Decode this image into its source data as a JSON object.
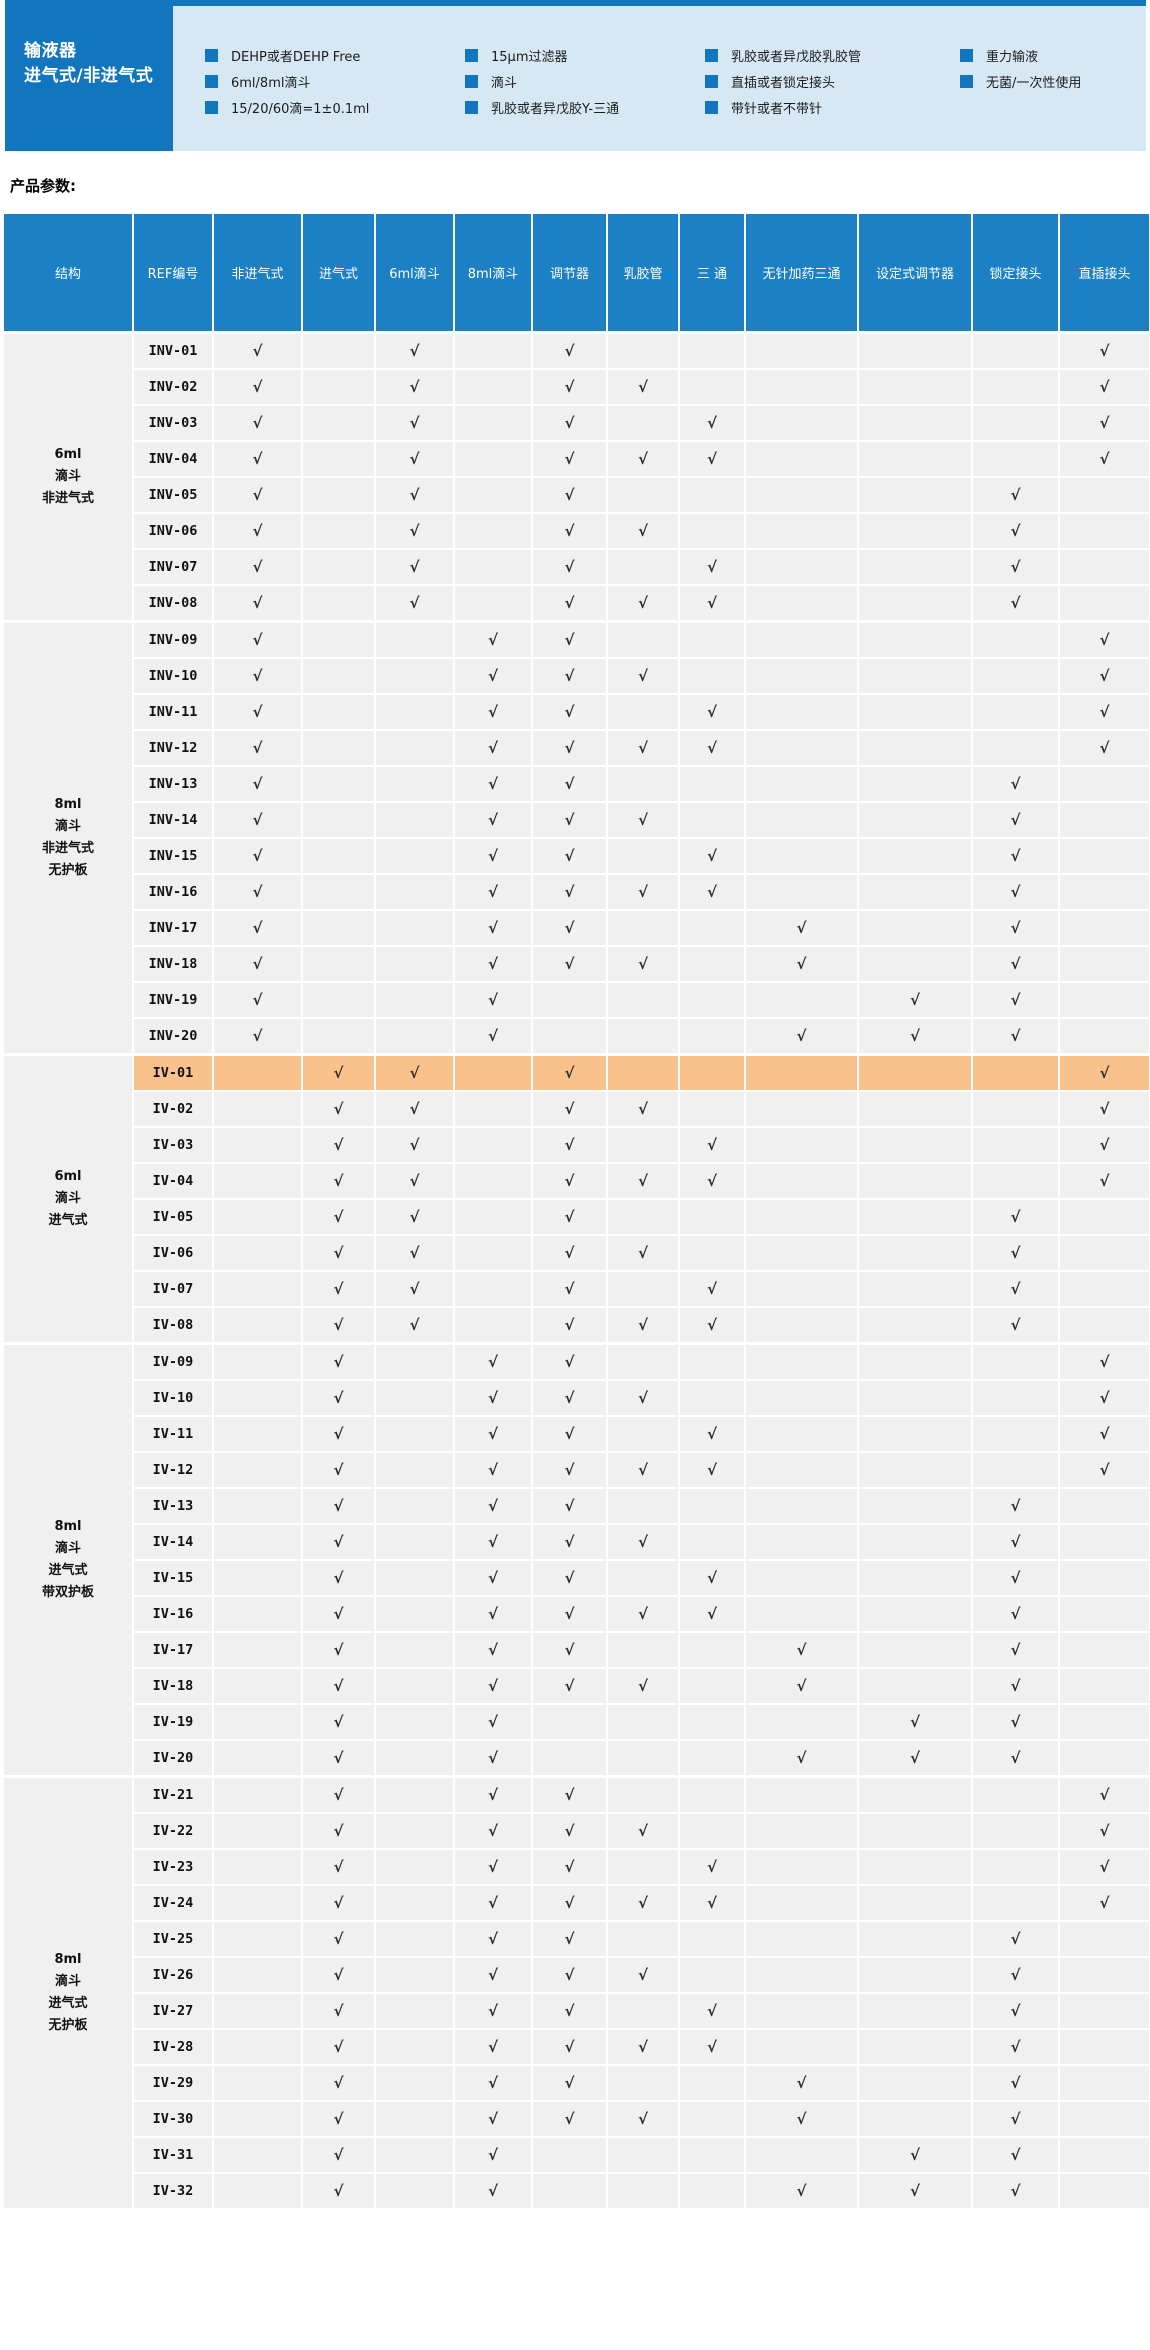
{
  "colors": {
    "accent_blue": "#1176BE",
    "table_header_blue": "#1B80C4",
    "panel_light_blue": "#D7E8F5",
    "cell_gray": "#F0F0F0",
    "highlight_orange": "#F9C28C"
  },
  "hero": {
    "title_line1": "输液器",
    "title_line2": "进气式/非进气式",
    "feature_columns": [
      [
        "DEHP或者DEHP Free",
        "6ml/8ml滴斗",
        "15/20/60滴=1±0.1ml"
      ],
      [
        "15μm过滤器",
        "滴斗",
        "乳胶或者异戊胶Y-三通"
      ],
      [
        "乳胶或者异戊胶乳胶管",
        "直插或者锁定接头",
        "带针或者不带针"
      ],
      [
        "重力输液",
        "无菌/一次性使用"
      ]
    ]
  },
  "section_label": "产品参数:",
  "table": {
    "check_glyph": "√",
    "headers": [
      "结构",
      "REF编号",
      "非进气式",
      "进气式",
      "6ml滴斗",
      "8ml滴斗",
      "调节器",
      "乳胶管",
      "三 通",
      "无针加药三通",
      "设定式调节器",
      "锁定接头",
      "直插接头"
    ],
    "groups": [
      {
        "label": "6ml\n滴斗\n非进气式",
        "rows": [
          {
            "ref": "INV-01",
            "checks": [
              1,
              0,
              1,
              0,
              1,
              0,
              0,
              0,
              0,
              0,
              1
            ]
          },
          {
            "ref": "INV-02",
            "checks": [
              1,
              0,
              1,
              0,
              1,
              1,
              0,
              0,
              0,
              0,
              1
            ]
          },
          {
            "ref": "INV-03",
            "checks": [
              1,
              0,
              1,
              0,
              1,
              0,
              1,
              0,
              0,
              0,
              1
            ]
          },
          {
            "ref": "INV-04",
            "checks": [
              1,
              0,
              1,
              0,
              1,
              1,
              1,
              0,
              0,
              0,
              1
            ]
          },
          {
            "ref": "INV-05",
            "checks": [
              1,
              0,
              1,
              0,
              1,
              0,
              0,
              0,
              0,
              1,
              0
            ]
          },
          {
            "ref": "INV-06",
            "checks": [
              1,
              0,
              1,
              0,
              1,
              1,
              0,
              0,
              0,
              1,
              0
            ]
          },
          {
            "ref": "INV-07",
            "checks": [
              1,
              0,
              1,
              0,
              1,
              0,
              1,
              0,
              0,
              1,
              0
            ]
          },
          {
            "ref": "INV-08",
            "checks": [
              1,
              0,
              1,
              0,
              1,
              1,
              1,
              0,
              0,
              1,
              0
            ]
          }
        ]
      },
      {
        "label": "8ml\n滴斗\n非进气式\n无护板",
        "rows": [
          {
            "ref": "INV-09",
            "checks": [
              1,
              0,
              0,
              1,
              1,
              0,
              0,
              0,
              0,
              0,
              1
            ]
          },
          {
            "ref": "INV-10",
            "checks": [
              1,
              0,
              0,
              1,
              1,
              1,
              0,
              0,
              0,
              0,
              1
            ]
          },
          {
            "ref": "INV-11",
            "checks": [
              1,
              0,
              0,
              1,
              1,
              0,
              1,
              0,
              0,
              0,
              1
            ]
          },
          {
            "ref": "INV-12",
            "checks": [
              1,
              0,
              0,
              1,
              1,
              1,
              1,
              0,
              0,
              0,
              1
            ]
          },
          {
            "ref": "INV-13",
            "checks": [
              1,
              0,
              0,
              1,
              1,
              0,
              0,
              0,
              0,
              1,
              0
            ]
          },
          {
            "ref": "INV-14",
            "checks": [
              1,
              0,
              0,
              1,
              1,
              1,
              0,
              0,
              0,
              1,
              0
            ]
          },
          {
            "ref": "INV-15",
            "checks": [
              1,
              0,
              0,
              1,
              1,
              0,
              1,
              0,
              0,
              1,
              0
            ]
          },
          {
            "ref": "INV-16",
            "checks": [
              1,
              0,
              0,
              1,
              1,
              1,
              1,
              0,
              0,
              1,
              0
            ]
          },
          {
            "ref": "INV-17",
            "checks": [
              1,
              0,
              0,
              1,
              1,
              0,
              0,
              1,
              0,
              1,
              0
            ]
          },
          {
            "ref": "INV-18",
            "checks": [
              1,
              0,
              0,
              1,
              1,
              1,
              0,
              1,
              0,
              1,
              0
            ]
          },
          {
            "ref": "INV-19",
            "checks": [
              1,
              0,
              0,
              1,
              0,
              0,
              0,
              0,
              1,
              1,
              0
            ]
          },
          {
            "ref": "INV-20",
            "checks": [
              1,
              0,
              0,
              1,
              0,
              0,
              0,
              1,
              1,
              1,
              0
            ]
          }
        ]
      },
      {
        "label": "6ml\n滴斗\n进气式",
        "rows": [
          {
            "ref": "IV-01",
            "checks": [
              0,
              1,
              1,
              0,
              1,
              0,
              0,
              0,
              0,
              0,
              1
            ],
            "highlight": true
          },
          {
            "ref": "IV-02",
            "checks": [
              0,
              1,
              1,
              0,
              1,
              1,
              0,
              0,
              0,
              0,
              1
            ]
          },
          {
            "ref": "IV-03",
            "checks": [
              0,
              1,
              1,
              0,
              1,
              0,
              1,
              0,
              0,
              0,
              1
            ]
          },
          {
            "ref": "IV-04",
            "checks": [
              0,
              1,
              1,
              0,
              1,
              1,
              1,
              0,
              0,
              0,
              1
            ]
          },
          {
            "ref": "IV-05",
            "checks": [
              0,
              1,
              1,
              0,
              1,
              0,
              0,
              0,
              0,
              1,
              0
            ]
          },
          {
            "ref": "IV-06",
            "checks": [
              0,
              1,
              1,
              0,
              1,
              1,
              0,
              0,
              0,
              1,
              0
            ]
          },
          {
            "ref": "IV-07",
            "checks": [
              0,
              1,
              1,
              0,
              1,
              0,
              1,
              0,
              0,
              1,
              0
            ]
          },
          {
            "ref": "IV-08",
            "checks": [
              0,
              1,
              1,
              0,
              1,
              1,
              1,
              0,
              0,
              1,
              0
            ]
          }
        ]
      },
      {
        "label": "8ml\n滴斗\n进气式\n带双护板",
        "rows": [
          {
            "ref": "IV-09",
            "checks": [
              0,
              1,
              0,
              1,
              1,
              0,
              0,
              0,
              0,
              0,
              1
            ]
          },
          {
            "ref": "IV-10",
            "checks": [
              0,
              1,
              0,
              1,
              1,
              1,
              0,
              0,
              0,
              0,
              1
            ]
          },
          {
            "ref": "IV-11",
            "checks": [
              0,
              1,
              0,
              1,
              1,
              0,
              1,
              0,
              0,
              0,
              1
            ]
          },
          {
            "ref": "IV-12",
            "checks": [
              0,
              1,
              0,
              1,
              1,
              1,
              1,
              0,
              0,
              0,
              1
            ]
          },
          {
            "ref": "IV-13",
            "checks": [
              0,
              1,
              0,
              1,
              1,
              0,
              0,
              0,
              0,
              1,
              0
            ]
          },
          {
            "ref": "IV-14",
            "checks": [
              0,
              1,
              0,
              1,
              1,
              1,
              0,
              0,
              0,
              1,
              0
            ]
          },
          {
            "ref": "IV-15",
            "checks": [
              0,
              1,
              0,
              1,
              1,
              0,
              1,
              0,
              0,
              1,
              0
            ]
          },
          {
            "ref": "IV-16",
            "checks": [
              0,
              1,
              0,
              1,
              1,
              1,
              1,
              0,
              0,
              1,
              0
            ]
          },
          {
            "ref": "IV-17",
            "checks": [
              0,
              1,
              0,
              1,
              1,
              0,
              0,
              1,
              0,
              1,
              0
            ]
          },
          {
            "ref": "IV-18",
            "checks": [
              0,
              1,
              0,
              1,
              1,
              1,
              0,
              1,
              0,
              1,
              0
            ]
          },
          {
            "ref": "IV-19",
            "checks": [
              0,
              1,
              0,
              1,
              0,
              0,
              0,
              0,
              1,
              1,
              0
            ]
          },
          {
            "ref": "IV-20",
            "checks": [
              0,
              1,
              0,
              1,
              0,
              0,
              0,
              1,
              1,
              1,
              0
            ]
          }
        ]
      },
      {
        "label": "8ml\n滴斗\n进气式\n无护板",
        "rows": [
          {
            "ref": "IV-21",
            "checks": [
              0,
              1,
              0,
              1,
              1,
              0,
              0,
              0,
              0,
              0,
              1
            ]
          },
          {
            "ref": "IV-22",
            "checks": [
              0,
              1,
              0,
              1,
              1,
              1,
              0,
              0,
              0,
              0,
              1
            ]
          },
          {
            "ref": "IV-23",
            "checks": [
              0,
              1,
              0,
              1,
              1,
              0,
              1,
              0,
              0,
              0,
              1
            ]
          },
          {
            "ref": "IV-24",
            "checks": [
              0,
              1,
              0,
              1,
              1,
              1,
              1,
              0,
              0,
              0,
              1
            ]
          },
          {
            "ref": "IV-25",
            "checks": [
              0,
              1,
              0,
              1,
              1,
              0,
              0,
              0,
              0,
              1,
              0
            ]
          },
          {
            "ref": "IV-26",
            "checks": [
              0,
              1,
              0,
              1,
              1,
              1,
              0,
              0,
              0,
              1,
              0
            ]
          },
          {
            "ref": "IV-27",
            "checks": [
              0,
              1,
              0,
              1,
              1,
              0,
              1,
              0,
              0,
              1,
              0
            ]
          },
          {
            "ref": "IV-28",
            "checks": [
              0,
              1,
              0,
              1,
              1,
              1,
              1,
              0,
              0,
              1,
              0
            ]
          },
          {
            "ref": "IV-29",
            "checks": [
              0,
              1,
              0,
              1,
              1,
              0,
              0,
              1,
              0,
              1,
              0
            ]
          },
          {
            "ref": "IV-30",
            "checks": [
              0,
              1,
              0,
              1,
              1,
              1,
              0,
              1,
              0,
              1,
              0
            ]
          },
          {
            "ref": "IV-31",
            "checks": [
              0,
              1,
              0,
              1,
              0,
              0,
              0,
              0,
              1,
              1,
              0
            ]
          },
          {
            "ref": "IV-32",
            "checks": [
              0,
              1,
              0,
              1,
              0,
              0,
              0,
              1,
              1,
              1,
              0
            ]
          }
        ]
      }
    ]
  }
}
